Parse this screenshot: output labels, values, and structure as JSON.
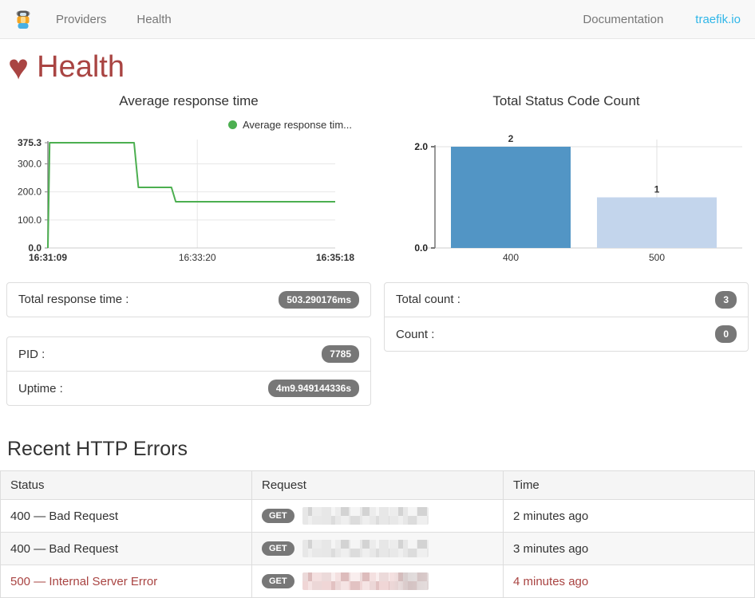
{
  "navbar": {
    "brand_icon": "traefik-mascot-logo",
    "items": [
      {
        "label": "Providers"
      },
      {
        "label": "Health"
      }
    ],
    "right": [
      {
        "label": "Documentation"
      },
      {
        "label": "traefik.io"
      }
    ]
  },
  "page": {
    "title": "Health",
    "heart": "♥"
  },
  "chart_data": [
    {
      "type": "line",
      "title": "Average response time",
      "legend_label": "Average response tim...",
      "color": "#4caf50",
      "ylim": [
        0,
        375.3
      ],
      "y_ticks": [
        [
          375.3,
          "375.3",
          1
        ],
        [
          300,
          "300.0",
          0
        ],
        [
          200,
          "200.0",
          0
        ],
        [
          100,
          "100.0",
          0
        ],
        [
          0,
          "0.0",
          1
        ]
      ],
      "x_ticks": [
        [
          "16:31:09",
          0,
          1
        ],
        [
          "16:33:20",
          0.52,
          0
        ],
        [
          "16:35:18",
          1,
          1
        ]
      ],
      "series": [
        {
          "name": "Average response tim...",
          "points": [
            [
              0,
              0
            ],
            [
              0.006,
              375.3
            ],
            [
              0.3,
              375.3
            ],
            [
              0.315,
              216
            ],
            [
              0.43,
              216
            ],
            [
              0.445,
              165
            ],
            [
              1,
              165
            ]
          ]
        }
      ],
      "grid": "horizontal+mid-vertical",
      "legend_position": "top-right"
    },
    {
      "type": "bar",
      "title": "Total Status Code Count",
      "categories": [
        "400",
        "500"
      ],
      "values": [
        2,
        1
      ],
      "value_labels": [
        "2",
        "1"
      ],
      "bar_colors": [
        "#5295c5",
        "#c3d5ec"
      ],
      "ylim": [
        0,
        2
      ],
      "y_ticks": [
        [
          2,
          "2.0"
        ],
        [
          0,
          "0.0"
        ]
      ],
      "grid": "top-line+vertical-at-500",
      "legend_position": "none"
    }
  ],
  "panels": {
    "total_response_time": {
      "label": "Total response time :",
      "value": "503.290176ms"
    },
    "pid": {
      "label": "PID :",
      "value": "7785"
    },
    "uptime": {
      "label": "Uptime :",
      "value": "4m9.949144336s"
    },
    "total_count": {
      "label": "Total count :",
      "value": "3"
    },
    "count": {
      "label": "Count :",
      "value": "0"
    }
  },
  "errors_section": {
    "title": "Recent HTTP Errors",
    "table": {
      "headers": [
        "Status",
        "Request",
        "Time"
      ],
      "rows": [
        {
          "status": "400 — Bad Request",
          "method": "GET",
          "request_blurred": true,
          "time": "2 minutes ago",
          "is_server_error": false
        },
        {
          "status": "400 — Bad Request",
          "method": "GET",
          "request_blurred": true,
          "time": "3 minutes ago",
          "is_server_error": false
        },
        {
          "status": "500 — Internal Server Error",
          "method": "GET",
          "request_blurred": true,
          "time": "4 minutes ago",
          "is_server_error": true
        }
      ]
    }
  },
  "colors": {
    "accent_red": "#a94442",
    "link_blue": "#30b6e8",
    "line_green": "#4caf50",
    "bar_dark_blue": "#5295c5",
    "bar_light_blue": "#c3d5ec",
    "badge_grey": "#777777"
  }
}
